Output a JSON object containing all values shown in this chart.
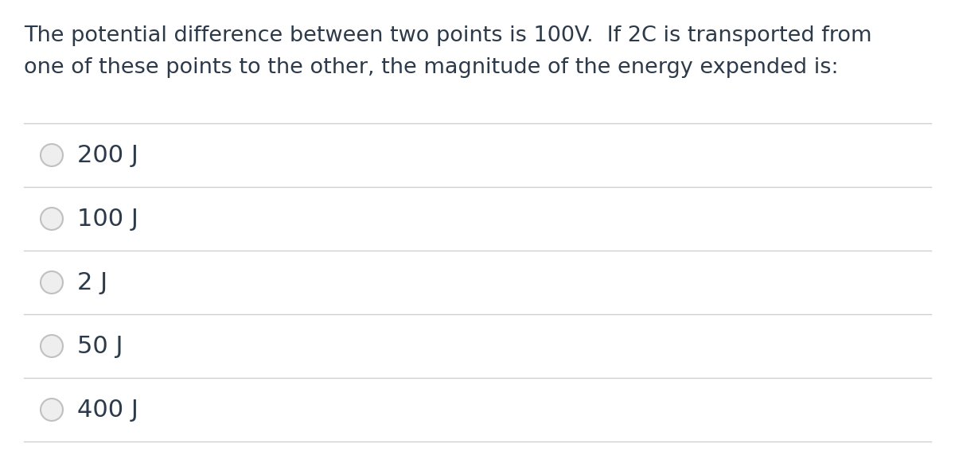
{
  "background_color": "#ffffff",
  "question_line1": "The potential difference between two points is 100V.  If 2C is transported from",
  "question_line2": "one of these points to the other, the magnitude of the energy expended is:",
  "options": [
    "200 J",
    "100 J",
    "2 J",
    "50 J",
    "400 J"
  ],
  "question_color": "#2d3a4a",
  "option_color": "#2d3a4a",
  "line_color": "#d0d0d0",
  "circle_edge_color": "#c0c0c0",
  "circle_fill_color": "#eeeeee",
  "question_fontsize": 19.5,
  "option_fontsize": 22.0,
  "fig_width": 12.0,
  "fig_height": 5.82
}
